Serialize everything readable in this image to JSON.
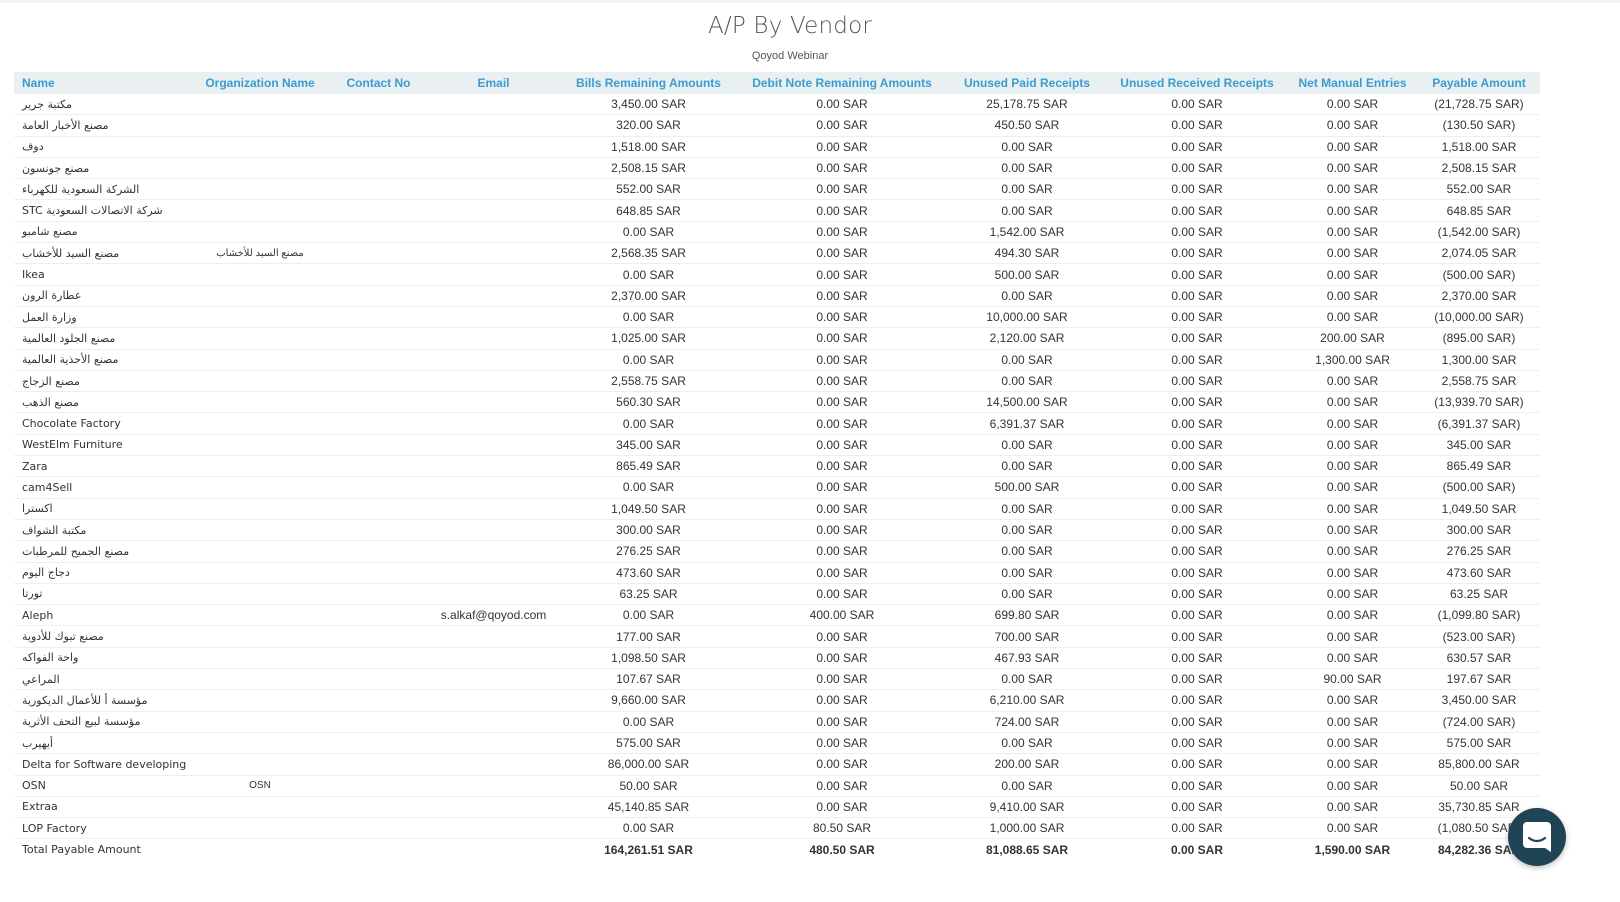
{
  "report": {
    "title": "A/P By Vendor",
    "subtitle": "Qoyod Webinar"
  },
  "columns": [
    "Name",
    "Organization Name",
    "Contact No",
    "Email",
    "Bills Remaining Amounts",
    "Debit Note Remaining Amounts",
    "Unused Paid Receipts",
    "Unused Received Receipts",
    "Net Manual Entries",
    "Payable Amount"
  ],
  "rows": [
    [
      "مكتبة جرير",
      "",
      "",
      "",
      "3,450.00 SAR",
      "0.00 SAR",
      "25,178.75 SAR",
      "0.00 SAR",
      "0.00 SAR",
      "(21,728.75 SAR)"
    ],
    [
      "مصنع الأخبار العامة",
      "",
      "",
      "",
      "320.00 SAR",
      "0.00 SAR",
      "450.50 SAR",
      "0.00 SAR",
      "0.00 SAR",
      "(130.50 SAR)"
    ],
    [
      "دوف",
      "",
      "",
      "",
      "1,518.00 SAR",
      "0.00 SAR",
      "0.00 SAR",
      "0.00 SAR",
      "0.00 SAR",
      "1,518.00 SAR"
    ],
    [
      "مصنع جونسون",
      "",
      "",
      "",
      "2,508.15 SAR",
      "0.00 SAR",
      "0.00 SAR",
      "0.00 SAR",
      "0.00 SAR",
      "2,508.15 SAR"
    ],
    [
      "الشركة السعودية للكهرباء",
      "",
      "",
      "",
      "552.00 SAR",
      "0.00 SAR",
      "0.00 SAR",
      "0.00 SAR",
      "0.00 SAR",
      "552.00 SAR"
    ],
    [
      "STC شركة الاتصالات السعودية",
      "",
      "",
      "",
      "648.85 SAR",
      "0.00 SAR",
      "0.00 SAR",
      "0.00 SAR",
      "0.00 SAR",
      "648.85 SAR"
    ],
    [
      "مصنع شامبو",
      "",
      "",
      "",
      "0.00 SAR",
      "0.00 SAR",
      "1,542.00 SAR",
      "0.00 SAR",
      "0.00 SAR",
      "(1,542.00 SAR)"
    ],
    [
      "مصنع السيد للأخشاب",
      "مصنع السيد للأخشاب",
      "",
      "",
      "2,568.35 SAR",
      "0.00 SAR",
      "494.30 SAR",
      "0.00 SAR",
      "0.00 SAR",
      "2,074.05 SAR"
    ],
    [
      "Ikea",
      "",
      "",
      "",
      "0.00 SAR",
      "0.00 SAR",
      "500.00 SAR",
      "0.00 SAR",
      "0.00 SAR",
      "(500.00 SAR)"
    ],
    [
      "عطارة الرون",
      "",
      "",
      "",
      "2,370.00 SAR",
      "0.00 SAR",
      "0.00 SAR",
      "0.00 SAR",
      "0.00 SAR",
      "2,370.00 SAR"
    ],
    [
      "وزارة العمل",
      "",
      "",
      "",
      "0.00 SAR",
      "0.00 SAR",
      "10,000.00 SAR",
      "0.00 SAR",
      "0.00 SAR",
      "(10,000.00 SAR)"
    ],
    [
      "مصنع الجلود العالمية",
      "",
      "",
      "",
      "1,025.00 SAR",
      "0.00 SAR",
      "2,120.00 SAR",
      "0.00 SAR",
      "200.00 SAR",
      "(895.00 SAR)"
    ],
    [
      "مصنع الأحذية العالمية",
      "",
      "",
      "",
      "0.00 SAR",
      "0.00 SAR",
      "0.00 SAR",
      "0.00 SAR",
      "1,300.00 SAR",
      "1,300.00 SAR"
    ],
    [
      "مصنع الزجاج",
      "",
      "",
      "",
      "2,558.75 SAR",
      "0.00 SAR",
      "0.00 SAR",
      "0.00 SAR",
      "0.00 SAR",
      "2,558.75 SAR"
    ],
    [
      "مصنع الذهب",
      "",
      "",
      "",
      "560.30 SAR",
      "0.00 SAR",
      "14,500.00 SAR",
      "0.00 SAR",
      "0.00 SAR",
      "(13,939.70 SAR)"
    ],
    [
      "Chocolate Factory",
      "",
      "",
      "",
      "0.00 SAR",
      "0.00 SAR",
      "6,391.37 SAR",
      "0.00 SAR",
      "0.00 SAR",
      "(6,391.37 SAR)"
    ],
    [
      "WestElm Furniture",
      "",
      "",
      "",
      "345.00 SAR",
      "0.00 SAR",
      "0.00 SAR",
      "0.00 SAR",
      "0.00 SAR",
      "345.00 SAR"
    ],
    [
      "Zara",
      "",
      "",
      "",
      "865.49 SAR",
      "0.00 SAR",
      "0.00 SAR",
      "0.00 SAR",
      "0.00 SAR",
      "865.49 SAR"
    ],
    [
      "cam4Sell",
      "",
      "",
      "",
      "0.00 SAR",
      "0.00 SAR",
      "500.00 SAR",
      "0.00 SAR",
      "0.00 SAR",
      "(500.00 SAR)"
    ],
    [
      "اكسترا",
      "",
      "",
      "",
      "1,049.50 SAR",
      "0.00 SAR",
      "0.00 SAR",
      "0.00 SAR",
      "0.00 SAR",
      "1,049.50 SAR"
    ],
    [
      "مكتبة الشواف",
      "",
      "",
      "",
      "300.00 SAR",
      "0.00 SAR",
      "0.00 SAR",
      "0.00 SAR",
      "0.00 SAR",
      "300.00 SAR"
    ],
    [
      "مصنع الجميح للمرطبات",
      "",
      "",
      "",
      "276.25 SAR",
      "0.00 SAR",
      "0.00 SAR",
      "0.00 SAR",
      "0.00 SAR",
      "276.25 SAR"
    ],
    [
      "دجاج اليوم",
      "",
      "",
      "",
      "473.60 SAR",
      "0.00 SAR",
      "0.00 SAR",
      "0.00 SAR",
      "0.00 SAR",
      "473.60 SAR"
    ],
    [
      "تورتا",
      "",
      "",
      "",
      "63.25 SAR",
      "0.00 SAR",
      "0.00 SAR",
      "0.00 SAR",
      "0.00 SAR",
      "63.25 SAR"
    ],
    [
      "Aleph",
      "",
      "",
      "s.alkaf@qoyod.com",
      "0.00 SAR",
      "400.00 SAR",
      "699.80 SAR",
      "0.00 SAR",
      "0.00 SAR",
      "(1,099.80 SAR)"
    ],
    [
      "مصنع تبوك للأدوية",
      "",
      "",
      "",
      "177.00 SAR",
      "0.00 SAR",
      "700.00 SAR",
      "0.00 SAR",
      "0.00 SAR",
      "(523.00 SAR)"
    ],
    [
      "واحة الفواكه",
      "",
      "",
      "",
      "1,098.50 SAR",
      "0.00 SAR",
      "467.93 SAR",
      "0.00 SAR",
      "0.00 SAR",
      "630.57 SAR"
    ],
    [
      "المراعي",
      "",
      "",
      "",
      "107.67 SAR",
      "0.00 SAR",
      "0.00 SAR",
      "0.00 SAR",
      "90.00 SAR",
      "197.67 SAR"
    ],
    [
      "مؤسسة أ للأعمال الديكورية",
      "",
      "",
      "",
      "9,660.00 SAR",
      "0.00 SAR",
      "6,210.00 SAR",
      "0.00 SAR",
      "0.00 SAR",
      "3,450.00 SAR"
    ],
    [
      "مؤسسة لبيع التحف الأثرية",
      "",
      "",
      "",
      "0.00 SAR",
      "0.00 SAR",
      "724.00 SAR",
      "0.00 SAR",
      "0.00 SAR",
      "(724.00 SAR)"
    ],
    [
      "أيهيرب",
      "",
      "",
      "",
      "575.00 SAR",
      "0.00 SAR",
      "0.00 SAR",
      "0.00 SAR",
      "0.00 SAR",
      "575.00 SAR"
    ],
    [
      "Delta for Software developing",
      "",
      "",
      "",
      "86,000.00 SAR",
      "0.00 SAR",
      "200.00 SAR",
      "0.00 SAR",
      "0.00 SAR",
      "85,800.00 SAR"
    ],
    [
      "OSN",
      "OSN",
      "",
      "",
      "50.00 SAR",
      "0.00 SAR",
      "0.00 SAR",
      "0.00 SAR",
      "0.00 SAR",
      "50.00 SAR"
    ],
    [
      "Extraa",
      "",
      "",
      "",
      "45,140.85 SAR",
      "0.00 SAR",
      "9,410.00 SAR",
      "0.00 SAR",
      "0.00 SAR",
      "35,730.85 SAR"
    ],
    [
      "LOP Factory",
      "",
      "",
      "",
      "0.00 SAR",
      "80.50 SAR",
      "1,000.00 SAR",
      "0.00 SAR",
      "0.00 SAR",
      "(1,080.50 SAR)"
    ]
  ],
  "total": [
    "Total Payable Amount",
    "",
    "",
    "",
    "164,261.51 SAR",
    "480.50 SAR",
    "81,088.65 SAR",
    "0.00 SAR",
    "1,590.00 SAR",
    "84,282.36 SAR"
  ],
  "chat_widget": {
    "icon": "chat-bubble-icon",
    "color": "#1e4456"
  },
  "colors": {
    "header_text": "#3b9cd0",
    "header_bg": "#e8f0f2"
  }
}
